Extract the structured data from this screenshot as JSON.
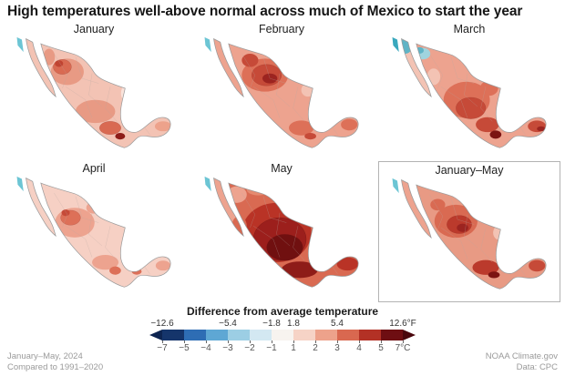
{
  "title": "High temperatures well-above normal across much of Mexico to start the year",
  "panels": [
    {
      "label": "January"
    },
    {
      "label": "February"
    },
    {
      "label": "March"
    },
    {
      "label": "April"
    },
    {
      "label": "May"
    },
    {
      "label": "January–May"
    }
  ],
  "legend": {
    "title": "Difference from average temperature",
    "colors": [
      "#15356b",
      "#2e6db4",
      "#5ea7d4",
      "#9ccee4",
      "#d3e8f2",
      "#f7f3ef",
      "#f6d3c6",
      "#eda28b",
      "#d96850",
      "#b33125",
      "#6e0e12"
    ],
    "left_arrow": "#0d2450",
    "right_arrow": "#4a070c",
    "f_ticks": [
      {
        "label": "−12.6",
        "at": 0
      },
      {
        "label": "−5.4",
        "at": 3
      },
      {
        "label": "−1.8",
        "at": 5
      },
      {
        "label": "1.8",
        "at": 6
      },
      {
        "label": "5.4",
        "at": 8
      },
      {
        "label": "12.6°F",
        "at": 11
      }
    ],
    "c_ticks": [
      "−7",
      "−5",
      "−4",
      "−3",
      "−2",
      "−1",
      "1",
      "2",
      "3",
      "4",
      "5",
      "7°C"
    ]
  },
  "footer": {
    "left_line1": "January–May, 2024",
    "left_line2": "Compared to 1991–2020",
    "right_line1": "NOAA Climate.gov",
    "right_line2": "Data: CPC"
  }
}
